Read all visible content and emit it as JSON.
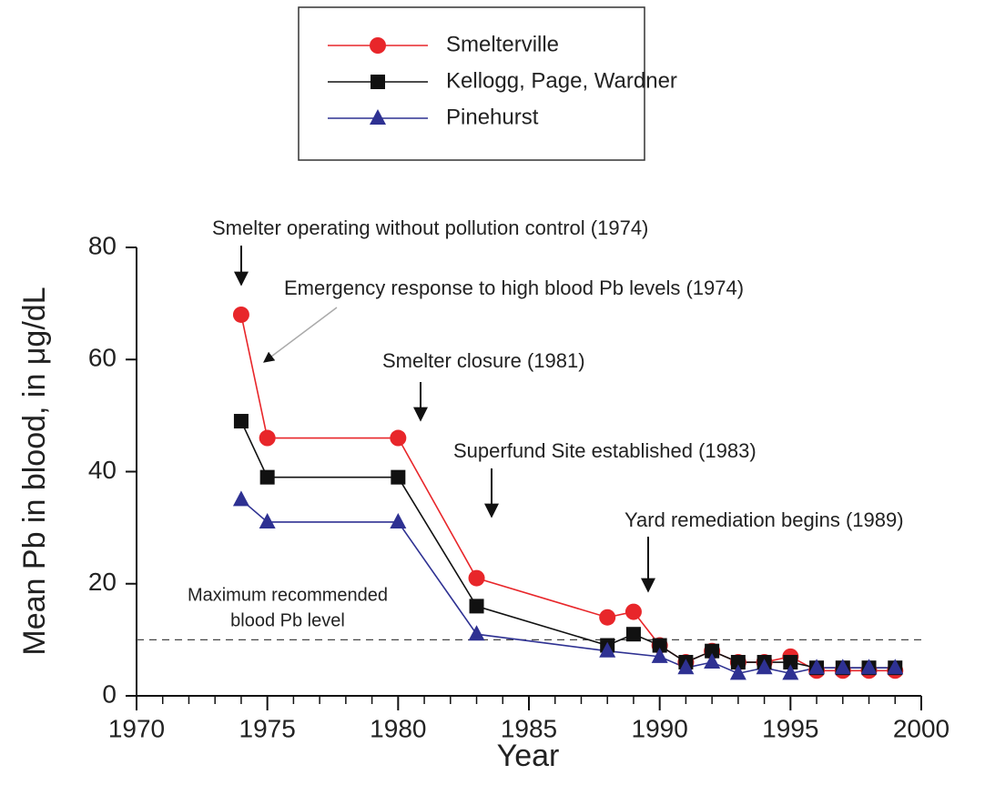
{
  "chart_data": {
    "type": "line",
    "x_label": "Year",
    "y_label": "Mean Pb in blood, in μg/dL",
    "xlim": [
      1970,
      2000
    ],
    "xticks": [
      1970,
      1975,
      1980,
      1985,
      1990,
      1995,
      2000
    ],
    "ylim": [
      0,
      80
    ],
    "yticks": [
      0,
      20,
      40,
      60,
      80
    ],
    "reference_line": 10,
    "reference_label": [
      "Maximum recommended",
      "blood Pb level"
    ],
    "series": [
      {
        "name": "Smelterville",
        "color": "#e8262a",
        "marker": "circle",
        "x": [
          1974,
          1975,
          1980,
          1983,
          1988,
          1989,
          1990,
          1991,
          1992,
          1993,
          1994,
          1995,
          1996,
          1997,
          1998,
          1999
        ],
        "values": [
          68,
          46,
          46,
          21,
          14,
          15,
          9,
          6,
          8,
          6,
          6,
          7,
          4.5,
          4.5,
          4.5,
          4.5
        ]
      },
      {
        "name": "Kellogg, Page, Wardner",
        "color": "#111111",
        "marker": "square",
        "x": [
          1974,
          1975,
          1980,
          1983,
          1988,
          1989,
          1990,
          1991,
          1992,
          1993,
          1994,
          1995,
          1996,
          1997,
          1998,
          1999
        ],
        "values": [
          49,
          39,
          39,
          16,
          9,
          11,
          9,
          6,
          8,
          6,
          6,
          6,
          5,
          5,
          5,
          5
        ]
      },
      {
        "name": "Pinehurst",
        "color": "#2e3192",
        "marker": "triangle",
        "x": [
          1974,
          1975,
          1980,
          1983,
          1988,
          1990,
          1991,
          1992,
          1993,
          1994,
          1995,
          1996,
          1997,
          1998,
          1999
        ],
        "values": [
          35,
          31,
          31,
          11,
          8,
          7,
          5,
          6,
          4,
          5,
          4,
          5,
          5,
          5,
          5
        ]
      }
    ],
    "annotations": [
      {
        "text": "Smelter operating without pollution control (1974)"
      },
      {
        "text": "Emergency response to high blood Pb levels (1974)"
      },
      {
        "text": "Smelter closure (1981)"
      },
      {
        "text": "Superfund Site established (1983)"
      },
      {
        "text": "Yard remediation begins (1989)"
      }
    ]
  }
}
